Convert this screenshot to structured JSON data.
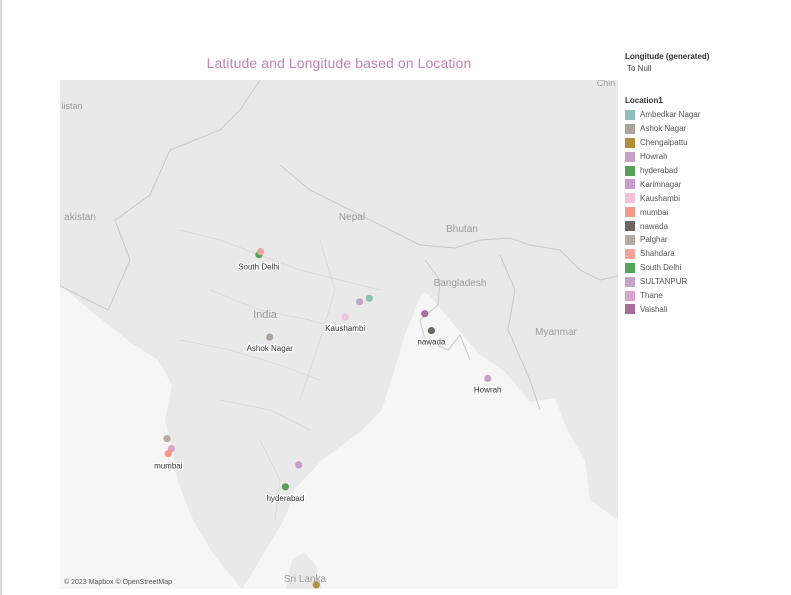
{
  "title": "Latitude and Longitude based on Location",
  "legend": {
    "longitude_title": "Longitude (generated)",
    "longitude_value": "To Null",
    "location_title": "Location1",
    "items": [
      {
        "label": "Ambedkar Nagar",
        "color": "#8fbfb9"
      },
      {
        "label": "Ashok Nagar",
        "color": "#aaa49e"
      },
      {
        "label": "Chengalpattu",
        "color": "#b08f3b"
      },
      {
        "label": "Howrah",
        "color": "#c9a0c8"
      },
      {
        "label": "hyderabad",
        "color": "#5a9e57"
      },
      {
        "label": "Karimnagar",
        "color": "#c99ccb"
      },
      {
        "label": "Kaushambi",
        "color": "#f2c2d8"
      },
      {
        "label": "mumbai",
        "color": "#f4998a"
      },
      {
        "label": "nawada",
        "color": "#6d6562"
      },
      {
        "label": "Palghar",
        "color": "#b4aba6"
      },
      {
        "label": "Shahdara",
        "color": "#f4a29a"
      },
      {
        "label": "South Delhi",
        "color": "#55a25a"
      },
      {
        "label": "SULTANPUR",
        "color": "#c6a4c8"
      },
      {
        "label": "Thane",
        "color": "#d9a6d2"
      },
      {
        "label": "Vaishali",
        "color": "#a76f98"
      }
    ]
  },
  "map": {
    "copyright": "© 2023 Mapbox © OpenStreetMap",
    "place_labels": [
      "Nepal",
      "Bhutan",
      "Bangladesh",
      "India",
      "Myanmar",
      "Sri Lanka",
      "akistan",
      "iistan",
      "Chin"
    ],
    "points": [
      {
        "name": "South Delhi",
        "color": "#55a25a",
        "lat": 28.52,
        "lon": 77.21
      },
      {
        "name": "Shahdara",
        "color": "#f4a29a",
        "lat": 28.67,
        "lon": 77.29
      },
      {
        "name": "Ambedkar Nagar",
        "color": "#8fbfb9",
        "lat": 26.43,
        "lon": 82.54
      },
      {
        "name": "SULTANPUR",
        "color": "#c6a4c8",
        "lat": 26.26,
        "lon": 82.07
      },
      {
        "name": "Kaushambi",
        "color": "#f2c2d8",
        "lat": 25.53,
        "lon": 81.38
      },
      {
        "name": "Ashok Nagar",
        "color": "#aaa49e",
        "lat": 24.57,
        "lon": 77.73
      },
      {
        "name": "Vaishali",
        "color": "#a76f98",
        "lat": 25.69,
        "lon": 85.22
      },
      {
        "name": "nawada",
        "color": "#6d6562",
        "lat": 24.88,
        "lon": 85.54
      },
      {
        "name": "Howrah",
        "color": "#c9a0c8",
        "lat": 22.59,
        "lon": 88.26
      },
      {
        "name": "Palghar",
        "color": "#b4aba6",
        "lat": 19.7,
        "lon": 72.77
      },
      {
        "name": "Thane",
        "color": "#d9a6d2",
        "lat": 19.22,
        "lon": 72.98
      },
      {
        "name": "mumbai",
        "color": "#f4998a",
        "lat": 18.98,
        "lon": 72.83
      },
      {
        "name": "Karimnagar",
        "color": "#c99ccb",
        "lat": 18.44,
        "lon": 79.13
      },
      {
        "name": "hyderabad",
        "color": "#5a9e57",
        "lat": 17.39,
        "lon": 78.49
      },
      {
        "name": "Chengalpattu",
        "color": "#b08f3b",
        "lat": 12.69,
        "lon": 79.98
      }
    ],
    "point_labels": [
      "South Delhi",
      "Kaushambi",
      "Ashok Nagar",
      "nawada",
      "Howrah",
      "mumbai",
      "hyderabad",
      "Chengalpattu"
    ]
  }
}
